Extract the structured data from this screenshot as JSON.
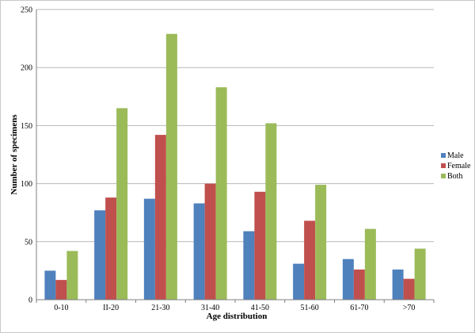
{
  "chart_data": {
    "type": "bar",
    "title": "",
    "xlabel": "Age distribution",
    "ylabel": "Number of specimens",
    "categories": [
      "0-10",
      "II-20",
      "21-30",
      "31-40",
      "41-50",
      "51-60",
      "61-70",
      ">70"
    ],
    "series": [
      {
        "name": "Male",
        "color": "#4f81bd",
        "values": [
          25,
          77,
          87,
          83,
          59,
          31,
          35,
          26
        ]
      },
      {
        "name": "Female",
        "color": "#c0504d",
        "values": [
          17,
          88,
          142,
          100,
          93,
          68,
          26,
          18
        ]
      },
      {
        "name": "Both",
        "color": "#9bbb59",
        "values": [
          42,
          165,
          229,
          183,
          152,
          99,
          61,
          44
        ]
      }
    ],
    "ylim": [
      0,
      250
    ],
    "yticks": [
      0,
      50,
      100,
      150,
      200,
      250
    ],
    "grid": true,
    "legend_position": "right"
  }
}
